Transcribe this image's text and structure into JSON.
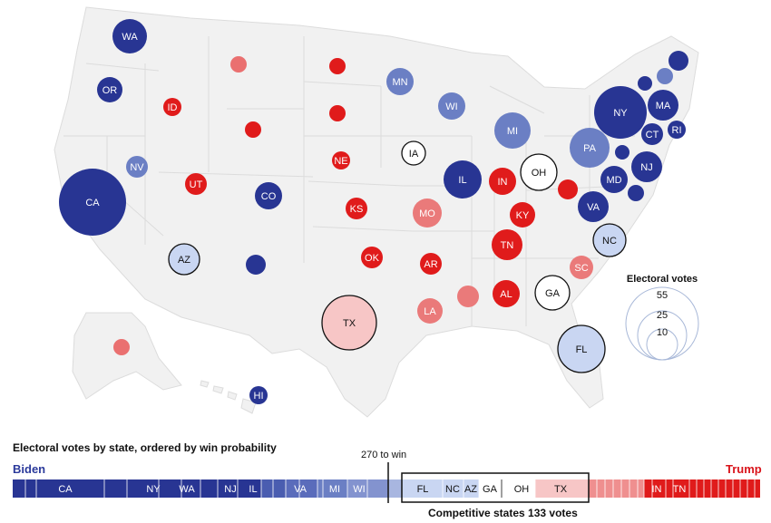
{
  "map_states": [
    {
      "id": "WA",
      "label": "WA",
      "color": "#283593",
      "text": "#fff",
      "ring": false
    },
    {
      "id": "OR",
      "label": "OR",
      "color": "#283593",
      "text": "#fff",
      "ring": false
    },
    {
      "id": "CA",
      "label": "CA",
      "color": "#283593",
      "text": "#fff",
      "ring": false
    },
    {
      "id": "NV",
      "label": "NV",
      "color": "#6b7fc4",
      "text": "#fff",
      "ring": false
    },
    {
      "id": "ID",
      "label": "ID",
      "color": "#e01b1b",
      "text": "#fff",
      "ring": false
    },
    {
      "id": "MT",
      "label": "",
      "color": "#ea7070",
      "text": "#fff",
      "ring": false
    },
    {
      "id": "WY",
      "label": "",
      "color": "#e01b1b",
      "text": "#fff",
      "ring": false
    },
    {
      "id": "UT",
      "label": "UT",
      "color": "#e01b1b",
      "text": "#fff",
      "ring": false
    },
    {
      "id": "CO",
      "label": "CO",
      "color": "#283593",
      "text": "#fff",
      "ring": false
    },
    {
      "id": "AZ",
      "label": "AZ",
      "color": "#c9d6f2",
      "text": "#111",
      "ring": true
    },
    {
      "id": "NM",
      "label": "",
      "color": "#283593",
      "text": "#fff",
      "ring": false
    },
    {
      "id": "ND",
      "label": "",
      "color": "#e01b1b",
      "text": "#fff",
      "ring": false
    },
    {
      "id": "SD",
      "label": "",
      "color": "#e01b1b",
      "text": "#fff",
      "ring": false
    },
    {
      "id": "NE",
      "label": "NE",
      "color": "#e01b1b",
      "text": "#fff",
      "ring": false
    },
    {
      "id": "KS",
      "label": "KS",
      "color": "#e01b1b",
      "text": "#fff",
      "ring": false
    },
    {
      "id": "OK",
      "label": "OK",
      "color": "#e01b1b",
      "text": "#fff",
      "ring": false
    },
    {
      "id": "TX",
      "label": "TX",
      "color": "#f7c6c6",
      "text": "#111",
      "ring": true
    },
    {
      "id": "MN",
      "label": "MN",
      "color": "#6b7fc4",
      "text": "#fff",
      "ring": false
    },
    {
      "id": "IA",
      "label": "IA",
      "color": "#ffffff",
      "text": "#111",
      "ring": true
    },
    {
      "id": "MO",
      "label": "MO",
      "color": "#ea7a7a",
      "text": "#fff",
      "ring": false
    },
    {
      "id": "AR",
      "label": "AR",
      "color": "#e01b1b",
      "text": "#fff",
      "ring": false
    },
    {
      "id": "LA",
      "label": "LA",
      "color": "#ea7a7a",
      "text": "#fff",
      "ring": false
    },
    {
      "id": "WI",
      "label": "WI",
      "color": "#6b7fc4",
      "text": "#fff",
      "ring": false
    },
    {
      "id": "IL",
      "label": "IL",
      "color": "#283593",
      "text": "#fff",
      "ring": false
    },
    {
      "id": "MI",
      "label": "MI",
      "color": "#6b7fc4",
      "text": "#fff",
      "ring": false
    },
    {
      "id": "IN",
      "label": "IN",
      "color": "#e01b1b",
      "text": "#fff",
      "ring": false
    },
    {
      "id": "OH",
      "label": "OH",
      "color": "#ffffff",
      "text": "#111",
      "ring": true
    },
    {
      "id": "KY",
      "label": "KY",
      "color": "#e01b1b",
      "text": "#fff",
      "ring": false
    },
    {
      "id": "TN",
      "label": "TN",
      "color": "#e01b1b",
      "text": "#fff",
      "ring": false
    },
    {
      "id": "MS",
      "label": "",
      "color": "#ea7a7a",
      "text": "#fff",
      "ring": false
    },
    {
      "id": "AL",
      "label": "AL",
      "color": "#e01b1b",
      "text": "#fff",
      "ring": false
    },
    {
      "id": "GA",
      "label": "GA",
      "color": "#ffffff",
      "text": "#111",
      "ring": true
    },
    {
      "id": "FL",
      "label": "FL",
      "color": "#c9d6f2",
      "text": "#111",
      "ring": true
    },
    {
      "id": "SC",
      "label": "SC",
      "color": "#ea7a7a",
      "text": "#fff",
      "ring": false
    },
    {
      "id": "NC",
      "label": "NC",
      "color": "#c9d6f2",
      "text": "#111",
      "ring": true
    },
    {
      "id": "VA",
      "label": "VA",
      "color": "#283593",
      "text": "#fff",
      "ring": false
    },
    {
      "id": "WV",
      "label": "",
      "color": "#e01b1b",
      "text": "#fff",
      "ring": false
    },
    {
      "id": "PA",
      "label": "PA",
      "color": "#6b7fc4",
      "text": "#fff",
      "ring": false
    },
    {
      "id": "NY",
      "label": "NY",
      "color": "#283593",
      "text": "#fff",
      "ring": false
    },
    {
      "id": "MD",
      "label": "MD",
      "color": "#283593",
      "text": "#fff",
      "ring": false
    },
    {
      "id": "DE",
      "label": "",
      "color": "#283593",
      "text": "#fff",
      "ring": false
    },
    {
      "id": "NJ",
      "label": "NJ",
      "color": "#283593",
      "text": "#fff",
      "ring": false
    },
    {
      "id": "CT",
      "label": "CT",
      "color": "#283593",
      "text": "#fff",
      "ring": false
    },
    {
      "id": "RI",
      "label": "RI",
      "color": "#283593",
      "text": "#fff",
      "ring": false
    },
    {
      "id": "MA",
      "label": "MA",
      "color": "#283593",
      "text": "#fff",
      "ring": false
    },
    {
      "id": "VT",
      "label": "",
      "color": "#283593",
      "text": "#fff",
      "ring": false
    },
    {
      "id": "NH",
      "label": "",
      "color": "#6b7fc4",
      "text": "#fff",
      "ring": false
    },
    {
      "id": "ME",
      "label": "",
      "color": "#283593",
      "text": "#fff",
      "ring": false
    },
    {
      "id": "DC",
      "label": "",
      "color": "#283593",
      "text": "#fff",
      "ring": false
    },
    {
      "id": "AK",
      "label": "",
      "color": "#ea7070",
      "text": "#fff",
      "ring": false
    },
    {
      "id": "HI",
      "label": "HI",
      "color": "#283593",
      "text": "#fff",
      "ring": false
    }
  ],
  "legend": {
    "title": "Electoral votes",
    "values": [
      "55",
      "25",
      "10"
    ]
  },
  "bar": {
    "title": "Electoral votes by state, ordered by win probability",
    "left_label": "Biden",
    "right_label": "Trump",
    "threshold_label": "270 to win",
    "competitive_label": "Competitive states 133 votes",
    "segment_labels": [
      "CA",
      "NY",
      "WA",
      "NJ",
      "IL",
      "VA",
      "MI",
      "WI",
      "FL",
      "NC",
      "AZ",
      "GA",
      "OH",
      "TX",
      "IN",
      "TN"
    ]
  },
  "colors": {
    "safe_biden": "#283593",
    "lean_biden": "#6b7fc4",
    "tossup_biden": "#c9d6f2",
    "tossup": "#ffffff",
    "tossup_trump": "#f7c6c6",
    "lean_trump": "#ea7a7a",
    "safe_trump": "#e01b1b"
  }
}
